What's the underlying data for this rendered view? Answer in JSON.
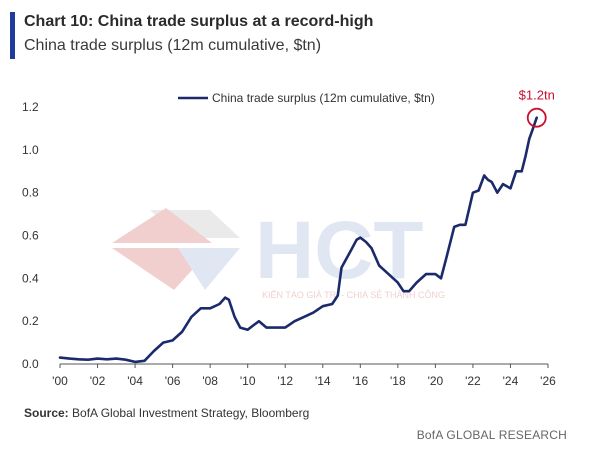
{
  "header": {
    "title": "Chart 10: China trade surplus at a record-high",
    "subtitle": "China trade surplus (12m cumulative, $tn)"
  },
  "footer": {
    "source_label": "Source:",
    "source_text": "BofA Global Investment Strategy, Bloomberg",
    "brand": "BofA GLOBAL RESEARCH"
  },
  "watermark": {
    "letters": "HCT",
    "tagline": "KIẾN TẠO GIÁ TRỊ - CHIA SẺ THÀNH CÔNG"
  },
  "colors": {
    "line": "#1b2a6b",
    "accent": "#1f3b9c",
    "callout": "#c8102e",
    "watermark_red": "#e7a8a8",
    "watermark_blue": "#c9d3ea"
  },
  "chart_data": {
    "type": "line",
    "title": "",
    "xlabel": "",
    "ylabel": "",
    "xlim": [
      2000,
      2026
    ],
    "ylim": [
      0,
      1.2
    ],
    "x_ticks": [
      2000,
      2002,
      2004,
      2006,
      2008,
      2010,
      2012,
      2014,
      2016,
      2018,
      2020,
      2022,
      2024,
      2026
    ],
    "x_tick_labels": [
      "'00",
      "'02",
      "'04",
      "'06",
      "'08",
      "'10",
      "'12",
      "'14",
      "'16",
      "'18",
      "'20",
      "'22",
      "'24",
      "'26"
    ],
    "y_ticks": [
      0,
      0.2,
      0.4,
      0.6,
      0.8,
      1.0,
      1.2
    ],
    "y_tick_labels": [
      "0.0",
      "0.2",
      "0.4",
      "0.6",
      "0.8",
      "1.0",
      "1.2"
    ],
    "legend": {
      "position": "top-center",
      "label": "China trade surplus (12m cumulative, $tn)"
    },
    "annotation": {
      "text": "$1.2tn",
      "x": 2025.4,
      "y": 1.15
    },
    "series": [
      {
        "name": "China trade surplus (12m cumulative, $tn)",
        "x": [
          2000.0,
          2000.5,
          2001.0,
          2001.5,
          2002.0,
          2002.5,
          2003.0,
          2003.5,
          2004.0,
          2004.5,
          2005.0,
          2005.5,
          2006.0,
          2006.5,
          2007.0,
          2007.5,
          2008.0,
          2008.5,
          2008.8,
          2009.0,
          2009.3,
          2009.6,
          2010.0,
          2010.3,
          2010.6,
          2011.0,
          2011.5,
          2012.0,
          2012.5,
          2013.0,
          2013.5,
          2014.0,
          2014.5,
          2014.8,
          2015.0,
          2015.5,
          2015.8,
          2016.0,
          2016.3,
          2016.6,
          2017.0,
          2017.5,
          2018.0,
          2018.3,
          2018.6,
          2019.0,
          2019.5,
          2020.0,
          2020.3,
          2020.6,
          2021.0,
          2021.3,
          2021.6,
          2022.0,
          2022.3,
          2022.6,
          2022.8,
          2023.0,
          2023.3,
          2023.6,
          2024.0,
          2024.3,
          2024.6,
          2024.8,
          2025.0,
          2025.2,
          2025.4
        ],
        "values": [
          0.03,
          0.025,
          0.022,
          0.02,
          0.025,
          0.022,
          0.025,
          0.02,
          0.01,
          0.015,
          0.06,
          0.1,
          0.11,
          0.15,
          0.22,
          0.26,
          0.26,
          0.28,
          0.31,
          0.3,
          0.22,
          0.17,
          0.16,
          0.18,
          0.2,
          0.17,
          0.17,
          0.17,
          0.2,
          0.22,
          0.24,
          0.27,
          0.28,
          0.32,
          0.45,
          0.53,
          0.58,
          0.59,
          0.57,
          0.54,
          0.46,
          0.42,
          0.38,
          0.34,
          0.34,
          0.38,
          0.42,
          0.42,
          0.4,
          0.5,
          0.64,
          0.65,
          0.65,
          0.8,
          0.81,
          0.88,
          0.86,
          0.85,
          0.8,
          0.84,
          0.82,
          0.9,
          0.9,
          0.97,
          1.05,
          1.1,
          1.15
        ]
      }
    ]
  }
}
